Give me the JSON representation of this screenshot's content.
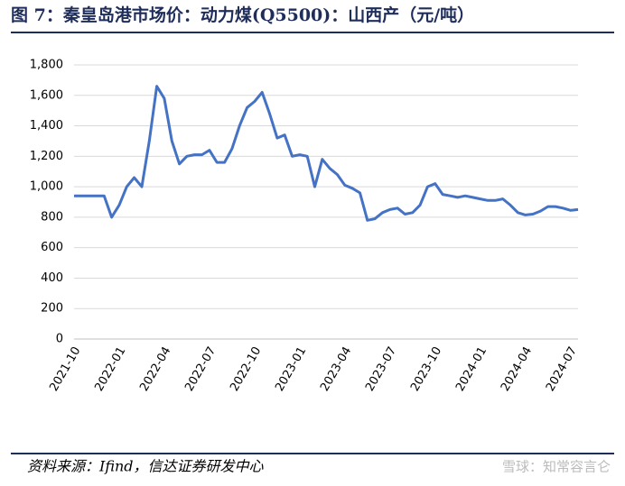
{
  "title": "图 7：秦皇岛港市场价：动力煤(Q5500)：山西产（元/吨）",
  "source": "资料来源：Ifind，信达证券研发中心",
  "watermark": "雪球：知常容言仑",
  "chart_data": {
    "type": "line",
    "categories": [
      "2021-10",
      null,
      null,
      null,
      null,
      null,
      "2022-01",
      null,
      null,
      null,
      null,
      null,
      "2022-04",
      null,
      null,
      null,
      null,
      null,
      "2022-07",
      null,
      null,
      null,
      null,
      null,
      "2022-10",
      null,
      null,
      null,
      null,
      null,
      "2023-01",
      null,
      null,
      null,
      null,
      null,
      "2023-04",
      null,
      null,
      null,
      null,
      null,
      "2023-07",
      null,
      null,
      null,
      null,
      null,
      "2023-10",
      null,
      null,
      null,
      null,
      null,
      "2024-01",
      null,
      null,
      null,
      null,
      null,
      "2024-04",
      null,
      null,
      null,
      null,
      null,
      "2024-07",
      null
    ],
    "series": [
      {
        "name": "秦皇岛港市场价：动力煤(Q5500)：山西产",
        "color": "#4472c4",
        "values": [
          940,
          940,
          940,
          940,
          940,
          800,
          880,
          1000,
          1060,
          1000,
          1300,
          1660,
          1580,
          1300,
          1150,
          1200,
          1210,
          1210,
          1240,
          1160,
          1160,
          1250,
          1400,
          1520,
          1560,
          1620,
          1480,
          1320,
          1340,
          1200,
          1210,
          1200,
          1000,
          1180,
          1120,
          1080,
          1010,
          990,
          960,
          780,
          790,
          830,
          850,
          860,
          820,
          830,
          880,
          1000,
          1020,
          950,
          940,
          930,
          940,
          930,
          920,
          910,
          910,
          920,
          880,
          830,
          815,
          820,
          840,
          870,
          870,
          860,
          845,
          850
        ]
      }
    ],
    "ylim": [
      0,
      1800
    ],
    "yticks": [
      0,
      200,
      400,
      600,
      800,
      {
        "value": 1000,
        "label": "1,000"
      },
      {
        "value": 1200,
        "label": "1,200"
      },
      {
        "value": 1400,
        "label": "1,400"
      },
      {
        "value": 1600,
        "label": "1,600"
      },
      {
        "value": 1800,
        "label": "1,800"
      }
    ],
    "grid": true
  }
}
